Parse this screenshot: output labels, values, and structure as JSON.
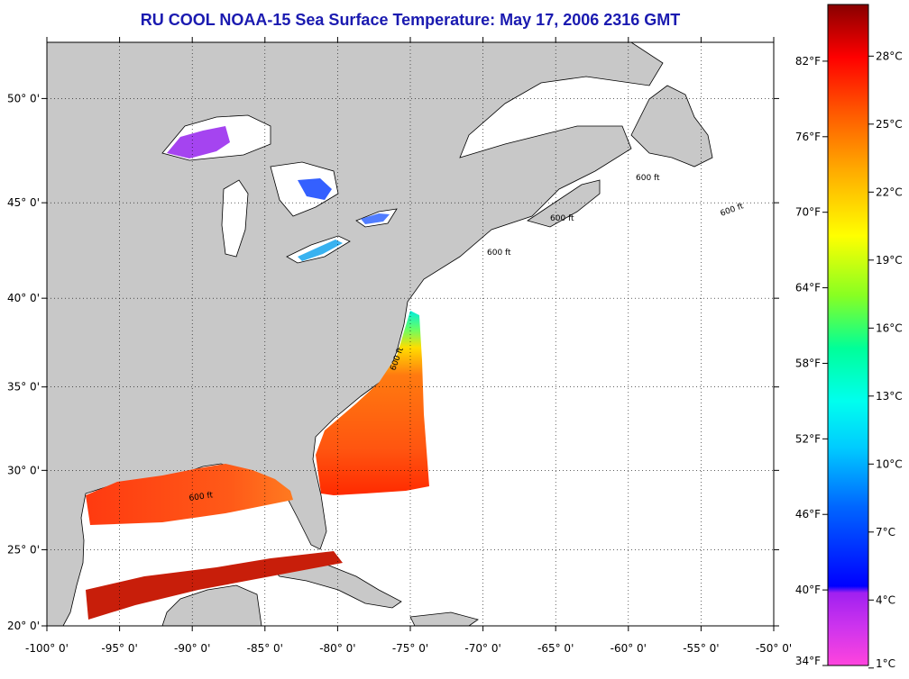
{
  "title": "RU COOL  NOAA-15  Sea Surface Temperature:  May 17, 2006 2316 GMT",
  "map": {
    "projection": "Mercator",
    "lon_range": [
      -100,
      -50
    ],
    "lat_range": [
      20,
      52.5
    ],
    "lon_labels": [
      "-100° 0'",
      "-95° 0'",
      "-90° 0'",
      "-85° 0'",
      "-80° 0'",
      "-75° 0'",
      "-70° 0'",
      "-65° 0'",
      "-60° 0'",
      "-55° 0'",
      "-50° 0'"
    ],
    "lat_labels": [
      "20° 0'",
      "25° 0'",
      "30° 0'",
      "35° 0'",
      "40° 0'",
      "45° 0'",
      "50° 0'"
    ],
    "grid": "dotted",
    "land_color": "#c8c8c8",
    "contour_labels": [
      "600 ft",
      "600 ft",
      "600 ft",
      "600 ft",
      "600 ft",
      "600 ft"
    ]
  },
  "colorbar": {
    "fahrenheit_labels": [
      "82°F",
      "76°F",
      "70°F",
      "64°F",
      "58°F",
      "52°F",
      "46°F",
      "40°F",
      "34°F"
    ],
    "celsius_labels": [
      "28°C",
      "25°C",
      "22°C",
      "19°C",
      "16°C",
      "13°C",
      "10°C",
      "7°C",
      "4°C",
      "1°C"
    ],
    "colors": [
      "#ff44dd",
      "#a020f0",
      "#0000ff",
      "#00aaff",
      "#00ffff",
      "#00ff88",
      "#aaff00",
      "#ffff00",
      "#ffaa00",
      "#ff5500",
      "#ff0000",
      "#8b0000"
    ]
  }
}
